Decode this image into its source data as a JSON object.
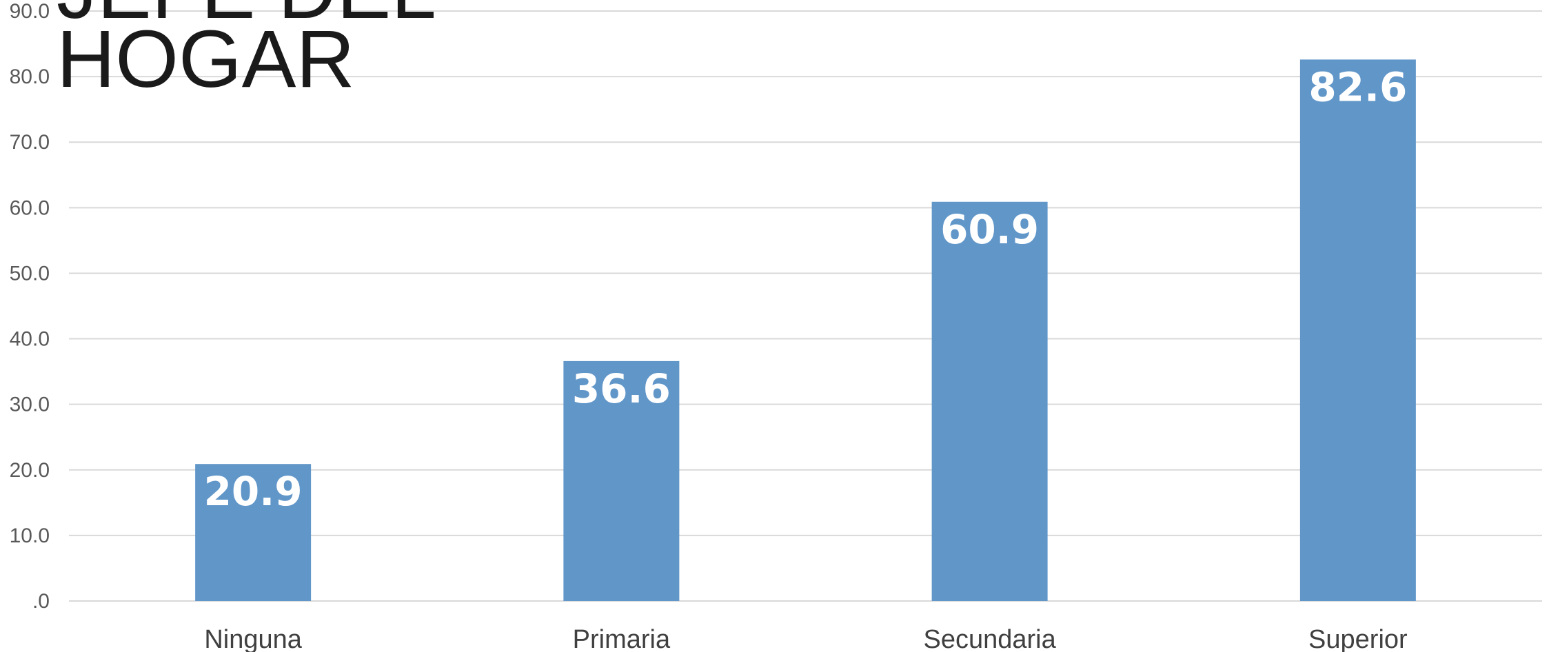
{
  "chart_data": {
    "type": "bar",
    "title": "PROMEDIO DE INGRESO SEGÚN NIVEL EDUCATIVO DEL JEFE DEL HOGAR",
    "title_visible": "JEFE DEL\nHOGAR",
    "categories": [
      "Ninguna",
      "Primaria",
      "Secundaria",
      "Superior"
    ],
    "values": [
      20.9,
      36.6,
      60.9,
      82.6
    ],
    "value_labels": [
      "20.9",
      "36.6",
      "60.9",
      "82.6"
    ],
    "y_ticks": [
      ".0",
      "10.0",
      "20.0",
      "30.0",
      "40.0",
      "50.0",
      "60.0",
      "70.0",
      "80.0",
      "90.0"
    ],
    "ylim": [
      0,
      90
    ],
    "xlabel": "",
    "ylabel": "",
    "grid": true,
    "legend": "none",
    "bar_color": "#6196c9"
  }
}
